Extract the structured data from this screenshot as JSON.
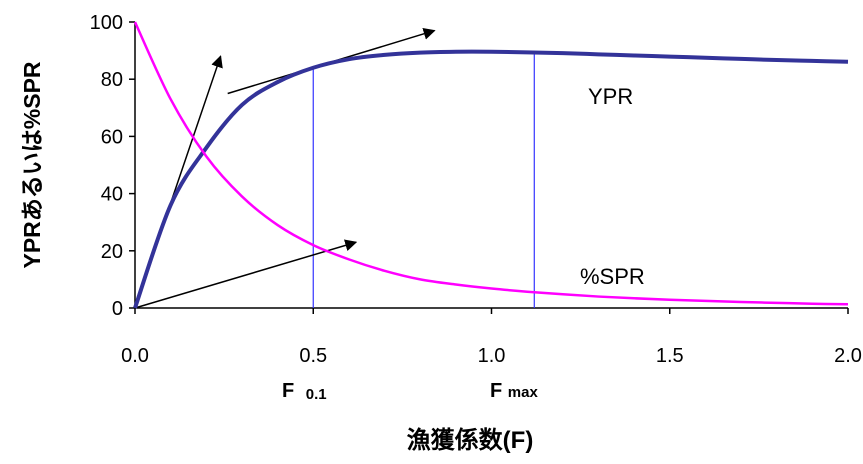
{
  "chart_data": {
    "type": "line",
    "title": "",
    "xlabel": "漁獲係数(F)",
    "ylabel": "YPRあるいは%SPR",
    "xlim": [
      0,
      2.0
    ],
    "ylim": [
      0,
      100
    ],
    "x_ticks": [
      "0.0",
      "0.5",
      "1.0",
      "1.5",
      "2.0"
    ],
    "y_ticks": [
      "0",
      "20",
      "40",
      "60",
      "80",
      "100"
    ],
    "grid": false,
    "legend": "none",
    "series": [
      {
        "name": "YPR",
        "color": "#333399",
        "x": [
          0,
          0.1,
          0.2,
          0.3,
          0.4,
          0.5,
          0.6,
          0.7,
          0.8,
          0.9,
          1.0,
          1.1,
          1.2,
          1.3,
          1.4,
          1.5,
          1.6,
          1.7,
          1.8,
          1.9,
          2.0
        ],
        "y": [
          0,
          36,
          56,
          71,
          79,
          84,
          87,
          88.5,
          89.3,
          89.6,
          89.6,
          89.4,
          89.1,
          88.7,
          88.3,
          87.9,
          87.5,
          87.1,
          86.7,
          86.4,
          86.1
        ]
      },
      {
        "name": "%SPR",
        "color": "#ff00ff",
        "x": [
          0,
          0.1,
          0.2,
          0.3,
          0.4,
          0.5,
          0.6,
          0.7,
          0.8,
          0.9,
          1.0,
          1.1,
          1.2,
          1.3,
          1.4,
          1.5,
          1.6,
          1.7,
          1.8,
          1.9,
          2.0
        ],
        "y": [
          100,
          73,
          53,
          39,
          29,
          22,
          17,
          13,
          10,
          8.2,
          6.8,
          5.7,
          4.8,
          4.0,
          3.4,
          2.9,
          2.5,
          2.1,
          1.8,
          1.5,
          1.3
        ]
      }
    ],
    "annotations": {
      "F01": {
        "x": 0.5,
        "label_main": "F",
        "label_sub": "0.1"
      },
      "Fmax": {
        "x": 1.12,
        "label_main": "F",
        "label_sub": "max"
      },
      "arrows": [
        {
          "from": [
            0,
            0
          ],
          "to": [
            0.24,
            88
          ]
        },
        {
          "from": [
            0.26,
            75
          ],
          "to": [
            0.84,
            97
          ]
        },
        {
          "from": [
            0,
            0
          ],
          "to": [
            0.62,
            23
          ]
        }
      ]
    }
  }
}
